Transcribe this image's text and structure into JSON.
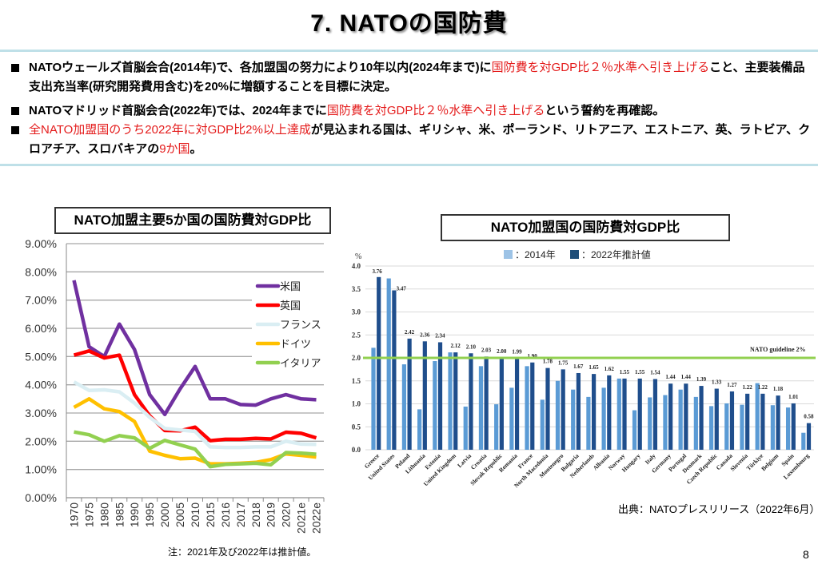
{
  "page": {
    "title": "7. NATOの国防費",
    "page_number": "8"
  },
  "bullets": [
    {
      "segments": [
        {
          "text": "NATOウェールズ首脳会合(2014年)で、各加盟国の努力により10年以内(2024年まで)に",
          "red": false
        },
        {
          "text": "国防費を対GDP比２％水準へ引き上げる",
          "red": true
        },
        {
          "text": "こと、主要装備品支出充当率(研究開発費用含む)を20%に増額することを目標に決定。",
          "red": false
        }
      ]
    },
    {
      "segments": [
        {
          "text": "NATOマドリッド首脳会合(2022年)では、2024年までに",
          "red": false
        },
        {
          "text": "国防費を対GDP比２％水準へ引き上げる",
          "red": true
        },
        {
          "text": "という誓約を再確認。",
          "red": false
        }
      ]
    },
    {
      "segments": [
        {
          "text": " 全NATO加盟国のうち2022年に対GDP比2%以上達成",
          "red": true
        },
        {
          "text": "が見込まれる国は、ギリシャ、米、ポーランド、リトアニア、エストニア、英、ラトビア、クロアチア、スロバキアの",
          "red": false
        },
        {
          "text": "9か国",
          "red": true
        },
        {
          "text": "。",
          "red": false
        }
      ]
    }
  ],
  "chart_data": [
    {
      "type": "line",
      "title": "NATO加盟主要5か国の国防費対GDP比",
      "xlabel": "",
      "ylabel": "",
      "x": [
        "1970",
        "1975",
        "1980",
        "1985",
        "1990",
        "1995",
        "2000",
        "2005",
        "2010",
        "2015",
        "2016",
        "2017",
        "2018",
        "2019",
        "2020",
        "2021e",
        "2022e"
      ],
      "ylim": [
        0,
        9
      ],
      "yticks": [
        "0.00%",
        "1.00%",
        "2.00%",
        "3.00%",
        "4.00%",
        "5.00%",
        "6.00%",
        "7.00%",
        "8.00%",
        "9.00%"
      ],
      "grid": true,
      "legend_position": "right",
      "series": [
        {
          "name": "米国",
          "color": "#7030a0",
          "values": [
            7.7,
            5.35,
            5.0,
            6.15,
            5.25,
            3.65,
            2.95,
            3.85,
            4.65,
            3.5,
            3.5,
            3.3,
            3.28,
            3.5,
            3.65,
            3.5,
            3.47
          ]
        },
        {
          "name": "英国",
          "color": "#ff0000",
          "values": [
            5.05,
            5.2,
            4.95,
            5.05,
            3.65,
            2.9,
            2.38,
            2.37,
            2.5,
            2.02,
            2.07,
            2.07,
            2.1,
            2.08,
            2.32,
            2.28,
            2.12
          ]
        },
        {
          "name": "フランス",
          "color": "#daeef3",
          "values": [
            4.1,
            3.8,
            3.82,
            3.75,
            3.35,
            2.85,
            2.45,
            2.4,
            2.35,
            1.8,
            1.78,
            1.78,
            1.8,
            1.8,
            2.0,
            1.9,
            1.89
          ]
        },
        {
          "name": "ドイツ",
          "color": "#ffc000",
          "values": [
            3.2,
            3.5,
            3.15,
            3.05,
            2.7,
            1.65,
            1.5,
            1.38,
            1.4,
            1.2,
            1.2,
            1.22,
            1.25,
            1.35,
            1.55,
            1.5,
            1.44
          ]
        },
        {
          "name": "イタリア",
          "color": "#92d050",
          "values": [
            2.33,
            2.23,
            2.0,
            2.2,
            2.12,
            1.75,
            2.03,
            1.87,
            1.72,
            1.1,
            1.18,
            1.2,
            1.22,
            1.17,
            1.6,
            1.58,
            1.54
          ]
        }
      ],
      "note": "注：2021年及び2022年は推計値。"
    },
    {
      "type": "bar",
      "title": "NATO加盟国の国防費対GDP比",
      "ylabel": "%",
      "ylim": [
        0,
        4
      ],
      "yticks": [
        "0.0",
        "0.5",
        "1.0",
        "1.5",
        "2.0",
        "2.5",
        "3.0",
        "3.5",
        "4.0"
      ],
      "grid": true,
      "legend_position": "top",
      "categories": [
        "Greece",
        "United States",
        "Poland",
        "Lithuania",
        "Estonia",
        "United Kingdom",
        "Latvia",
        "Croatia",
        "Slovak Republic",
        "Romania",
        "France",
        "North Macedonia",
        "Montenegro",
        "Bulgaria",
        "Netherlands",
        "Albania",
        "Norway",
        "Hungary",
        "Italy",
        "Germany",
        "Portugal",
        "Denmark",
        "Czech Republic",
        "Canada",
        "Slovenia",
        "Türkiye",
        "Belgium",
        "Spain",
        "Luxembourg"
      ],
      "series": [
        {
          "name": "：2014年",
          "color": "#5b9bd5",
          "values": [
            2.22,
            3.73,
            1.86,
            0.88,
            1.93,
            2.12,
            0.94,
            1.82,
            0.99,
            1.35,
            1.82,
            1.09,
            1.5,
            1.31,
            1.15,
            1.35,
            1.55,
            0.86,
            1.14,
            1.19,
            1.31,
            1.15,
            0.95,
            1.01,
            0.98,
            1.45,
            0.97,
            0.92,
            0.37
          ]
        },
        {
          "name": "：2022年推計値",
          "color": "#1f4e8c",
          "values": [
            3.76,
            3.47,
            2.42,
            2.36,
            2.34,
            2.12,
            2.1,
            2.03,
            2.0,
            1.99,
            1.9,
            1.78,
            1.75,
            1.67,
            1.65,
            1.62,
            1.55,
            1.55,
            1.54,
            1.44,
            1.44,
            1.39,
            1.33,
            1.27,
            1.22,
            1.22,
            1.18,
            1.01,
            0.58
          ],
          "data_labels": [
            "3.76",
            "3.47",
            "2.42",
            "2.36",
            "2.34",
            "2.12",
            "2.10",
            "2.03",
            "2.00",
            "1.99",
            "1.90",
            "1.78",
            "1.75",
            "1.67",
            "1.65",
            "1.62",
            "1.55",
            "1.55",
            "1.54",
            "1.44",
            "1.44",
            "1.39",
            "1.33",
            "1.27",
            "1.22",
            "1.22",
            "1.18",
            "1.01",
            "0.58"
          ]
        }
      ],
      "reference_line": {
        "value": 2.0,
        "label": "NATO guideline 2%",
        "color": "#92d050"
      },
      "source": "出典：NATOプレスリリース（2022年6月）"
    }
  ]
}
